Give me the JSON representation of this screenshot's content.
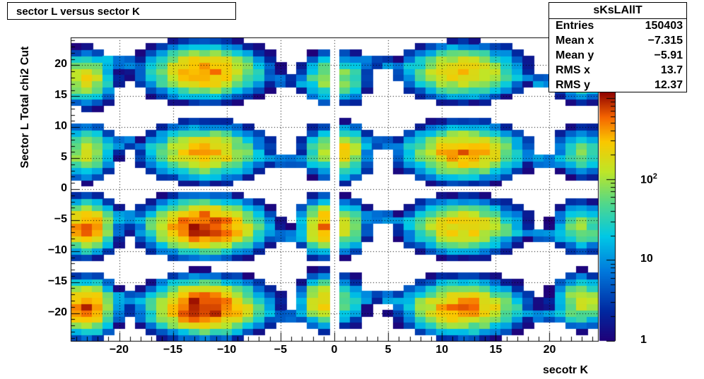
{
  "chart_data": {
    "type": "heatmap",
    "title": "sector L versus sector K",
    "xlabel": "secotr K",
    "ylabel": "Sector L  Total chi2 Cut",
    "xlim": [
      -24.5,
      24.5
    ],
    "ylim": [
      -24.5,
      24.5
    ],
    "x_ticks": [
      "−20",
      "−15",
      "−10",
      "−5",
      "0",
      "5",
      "10",
      "15",
      "20"
    ],
    "y_ticks": [
      "20",
      "15",
      "10",
      "5",
      "0",
      "−5",
      "−10",
      "−15",
      "−20"
    ],
    "z_scale": "log",
    "zlim": [
      1,
      1200
    ],
    "z_ticks": [
      {
        "value": 1,
        "label": "1"
      },
      {
        "value": 10,
        "label": "10"
      },
      {
        "value": 100,
        "label": "10",
        "sup": "2"
      }
    ],
    "grid": true,
    "palette": "rainbow",
    "stats": {
      "name": "sKsLAllT",
      "rows": [
        {
          "key": "Entries",
          "value": "150403"
        },
        {
          "key": "Mean x",
          "value": "−7.315"
        },
        {
          "key": "Mean y",
          "value": "−5.91"
        },
        {
          "key": "RMS x",
          "value": "13.7"
        },
        {
          "key": "RMS y",
          "value": "12.37"
        }
      ]
    },
    "cell_size": 1,
    "hotspots": [
      {
        "x": -12,
        "y": -19,
        "peak": 1100,
        "sx": 2.0,
        "sy": 1.6
      },
      {
        "x": -12,
        "y": -6,
        "peak": 1000,
        "sx": 2.0,
        "sy": 1.6
      },
      {
        "x": -12,
        "y": 6,
        "peak": 350,
        "sx": 2.0,
        "sy": 1.6
      },
      {
        "x": -12,
        "y": 19,
        "peak": 500,
        "sx": 2.0,
        "sy": 1.6
      },
      {
        "x": 12,
        "y": -19,
        "peak": 500,
        "sx": 2.0,
        "sy": 1.6
      },
      {
        "x": 12,
        "y": -6,
        "peak": 300,
        "sx": 2.0,
        "sy": 1.6
      },
      {
        "x": 12,
        "y": 6,
        "peak": 500,
        "sx": 2.0,
        "sy": 1.6
      },
      {
        "x": 12,
        "y": 19,
        "peak": 300,
        "sx": 2.0,
        "sy": 1.6
      },
      {
        "x": -23,
        "y": -19,
        "peak": 700,
        "sx": 1.0,
        "sy": 1.6
      },
      {
        "x": -23,
        "y": -6,
        "peak": 600,
        "sx": 1.0,
        "sy": 1.6
      },
      {
        "x": -23,
        "y": 6,
        "peak": 150,
        "sx": 1.0,
        "sy": 1.6
      },
      {
        "x": -23,
        "y": 18,
        "peak": 200,
        "sx": 1.0,
        "sy": 1.6
      },
      {
        "x": -1,
        "y": -18,
        "peak": 300,
        "sx": 0.8,
        "sy": 1.6
      },
      {
        "x": -1,
        "y": -6,
        "peak": 500,
        "sx": 0.8,
        "sy": 1.6
      },
      {
        "x": -1,
        "y": 6,
        "peak": 80,
        "sx": 0.8,
        "sy": 1.6
      },
      {
        "x": -1,
        "y": 18,
        "peak": 80,
        "sx": 0.8,
        "sy": 1.6
      },
      {
        "x": 1,
        "y": -18,
        "peak": 50,
        "sx": 0.8,
        "sy": 1.6
      },
      {
        "x": 1,
        "y": -6,
        "peak": 150,
        "sx": 0.8,
        "sy": 1.6
      },
      {
        "x": 1,
        "y": 6,
        "peak": 250,
        "sx": 0.8,
        "sy": 1.6
      },
      {
        "x": 1,
        "y": 18,
        "peak": 80,
        "sx": 0.8,
        "sy": 1.6
      },
      {
        "x": 23,
        "y": -18,
        "peak": 150,
        "sx": 1.0,
        "sy": 1.6
      },
      {
        "x": 23,
        "y": -6,
        "peak": 80,
        "sx": 1.0,
        "sy": 1.6
      },
      {
        "x": 23,
        "y": 6,
        "peak": 60,
        "sx": 1.0,
        "sy": 1.6
      },
      {
        "x": 23,
        "y": 18,
        "peak": 60,
        "sx": 1.0,
        "sy": 1.6
      }
    ]
  }
}
